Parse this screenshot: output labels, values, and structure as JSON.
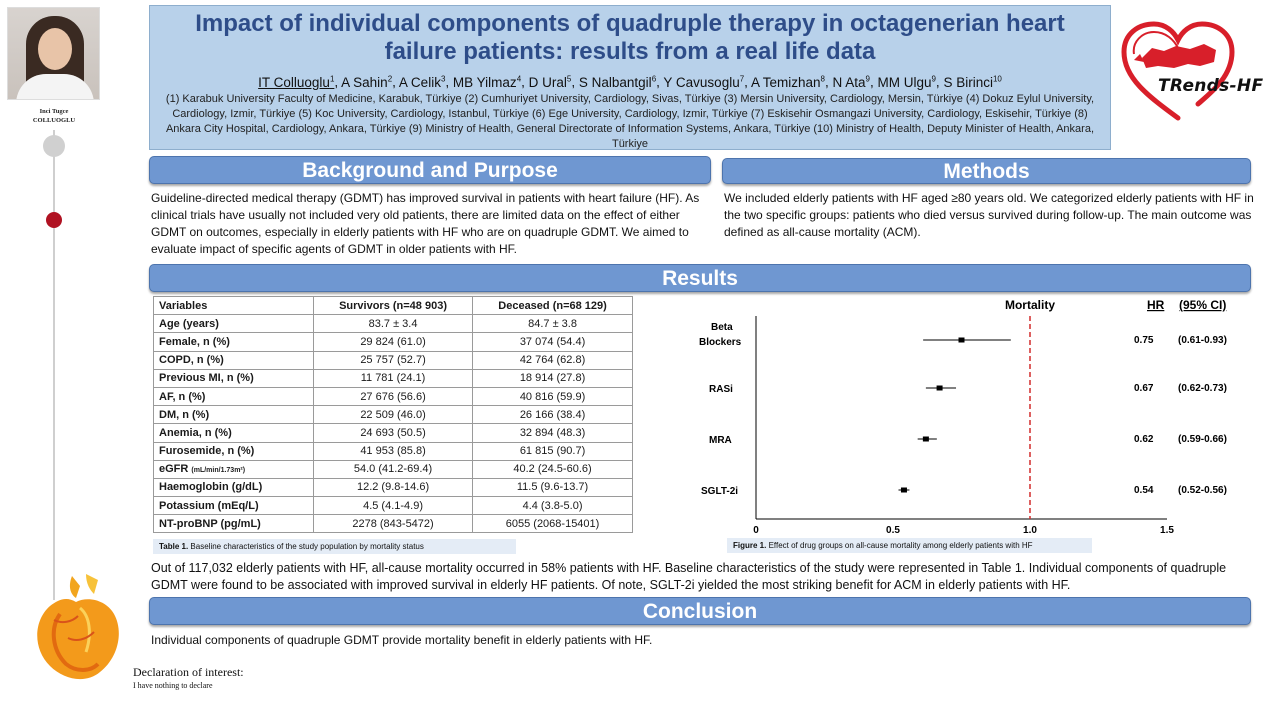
{
  "author_card": {
    "name_line1": "Inci Tugce",
    "name_line2": "COLLUOGLU"
  },
  "header": {
    "title": "Impact of individual components of quadruple therapy in octagenerian heart failure patients: results from a real life data",
    "authors": [
      {
        "name": "IT Colluoglu",
        "sup": "1"
      },
      {
        "name": "A Sahin",
        "sup": "2"
      },
      {
        "name": "A Celik",
        "sup": "3"
      },
      {
        "name": "MB Yilmaz",
        "sup": "4"
      },
      {
        "name": "D Ural",
        "sup": "5"
      },
      {
        "name": "S Nalbantgil",
        "sup": "6"
      },
      {
        "name": "Y Cavusoglu",
        "sup": "7"
      },
      {
        "name": "A Temizhan",
        "sup": "8"
      },
      {
        "name": "N Ata",
        "sup": "9"
      },
      {
        "name": "MM Ulgu",
        "sup": "9"
      },
      {
        "name": "S Birinci",
        "sup": "10"
      }
    ],
    "affiliations": "(1) Karabuk University Faculty of Medicine, Karabuk, Türkiye (2) Cumhuriyet University, Cardiology, Sivas, Türkiye (3) Mersin University, Cardiology, Mersin, Türkiye (4) Dokuz Eylul University, Cardiology, Izmir, Türkiye (5) Koc University, Cardiology, Istanbul, Türkiye (6) Ege University, Cardiology, Izmir, Türkiye (7) Eskisehir Osmangazi University, Cardiology, Eskisehir, Türkiye (8) Ankara City Hospital, Cardiology, Ankara, Türkiye (9) Ministry of Health, General Directorate of Information Systems, Ankara, Türkiye (10) Ministry of Health, Deputy Minister of Health, Ankara, Türkiye"
  },
  "logo": {
    "text": "TRends-HF",
    "color": "#d81f2a"
  },
  "sections": {
    "background": {
      "heading": "Background and Purpose",
      "text": "Guideline-directed medical therapy (GDMT) has improved survival in patients with heart failure (HF). As clinical trials have usually not included very old patients, there are limited data on the effect of either GDMT on outcomes, especially in elderly patients with HF who are on quadruple GDMT. We aimed to evaluate impact of specific agents of GDMT in older patients with HF."
    },
    "methods": {
      "heading": "Methods",
      "text": "We included elderly patients with HF aged ≥80 years old. We categorized elderly patients with HF in the two specific groups: patients who died versus survived during follow-up. The main outcome was defined as all-cause mortality (ACM)."
    },
    "results": {
      "heading": "Results",
      "text": "Out of 117,032 elderly patients with HF, all-cause mortality occurred in 58% patients with HF. Baseline characteristics of the study were represented in Table 1. Individual components of quadruple GDMT were found to be associated with improved survival in elderly HF patients. Of note, SGLT-2i yielded the most striking benefit for ACM in elderly patients with HF."
    },
    "conclusion": {
      "heading": "Conclusion",
      "text": "Individual components of quadruple GDMT provide mortality benefit in elderly patients with HF."
    }
  },
  "table": {
    "headers": [
      "Variables",
      "Survivors (n=48 903)",
      "Deceased (n=68 129)"
    ],
    "rows": [
      {
        "label": "Age (years)",
        "unit": "",
        "survivors": "83.7 ± 3.4",
        "deceased": "84.7 ± 3.8"
      },
      {
        "label": "Female, n (%)",
        "unit": "",
        "survivors": "29 824 (61.0)",
        "deceased": "37 074 (54.4)"
      },
      {
        "label": "COPD, n (%)",
        "unit": "",
        "survivors": "25 757 (52.7)",
        "deceased": "42 764 (62.8)"
      },
      {
        "label": "Previous MI, n (%)",
        "unit": "",
        "survivors": "11 781 (24.1)",
        "deceased": "18 914 (27.8)"
      },
      {
        "label": "AF, n (%)",
        "unit": "",
        "survivors": "27 676 (56.6)",
        "deceased": "40 816 (59.9)"
      },
      {
        "label": "DM, n (%)",
        "unit": "",
        "survivors": "22 509 (46.0)",
        "deceased": "26 166 (38.4)"
      },
      {
        "label": "Anemia, n (%)",
        "unit": "",
        "survivors": "24 693 (50.5)",
        "deceased": "32 894 (48.3)"
      },
      {
        "label": "Furosemide, n (%)",
        "unit": "",
        "survivors": "41 953 (85.8)",
        "deceased": "61 815 (90.7)"
      },
      {
        "label": "eGFR ",
        "unit": "(mL/min/1.73m²)",
        "survivors": "54.0 (41.2-69.4)",
        "deceased": "40.2 (24.5-60.6)"
      },
      {
        "label": "Haemoglobin (g/dL)",
        "unit": "",
        "survivors": "12.2 (9.8-14.6)",
        "deceased": "11.5 (9.6-13.7)"
      },
      {
        "label": "Potassium (mEq/L)",
        "unit": "",
        "survivors": "4.5 (4.1-4.9)",
        "deceased": "4.4 (3.8-5.0)"
      },
      {
        "label": "NT-proBNP (pg/mL)",
        "unit": "",
        "survivors": "2278 (843-5472)",
        "deceased": "6055 (2068-15401)"
      }
    ],
    "caption_bold": "Table 1.",
    "caption": " Baseline characteristics of the study population by mortality status"
  },
  "figure": {
    "caption_bold": "Figure 1.",
    "caption": " Effect of drug groups on all-cause mortality among elderly patients with HF"
  },
  "chart_data": {
    "type": "scatter",
    "title": "Mortality",
    "hr_header": "HR",
    "ci_header": "(95% CI)",
    "categories": [
      "Beta Blockers",
      "RASi",
      "MRA",
      "SGLT-2i"
    ],
    "label_lines": [
      [
        "Beta",
        "Blockers"
      ],
      [
        "RASi"
      ],
      [
        "MRA"
      ],
      [
        "SGLT-2i"
      ]
    ],
    "hr": [
      0.75,
      0.67,
      0.62,
      0.54
    ],
    "ci_low": [
      0.61,
      0.62,
      0.59,
      0.52
    ],
    "ci_high": [
      0.93,
      0.73,
      0.66,
      0.56
    ],
    "hr_text": [
      "0.75",
      "0.67",
      "0.62",
      "0.54"
    ],
    "ci_text": [
      "(0.61-0.93)",
      "(0.62-0.73)",
      "(0.59-0.66)",
      "(0.52-0.56)"
    ],
    "xticks": [
      "0",
      "0.5",
      "1.0",
      "1.5"
    ],
    "xtick_values": [
      0,
      0.5,
      1.0,
      1.5
    ],
    "xlim": [
      0,
      1.5
    ],
    "reference_line": 1.0,
    "reference_color": "#d22b2b"
  },
  "declaration": {
    "title": "Declaration of interest:",
    "text": "I have nothing to declare"
  }
}
